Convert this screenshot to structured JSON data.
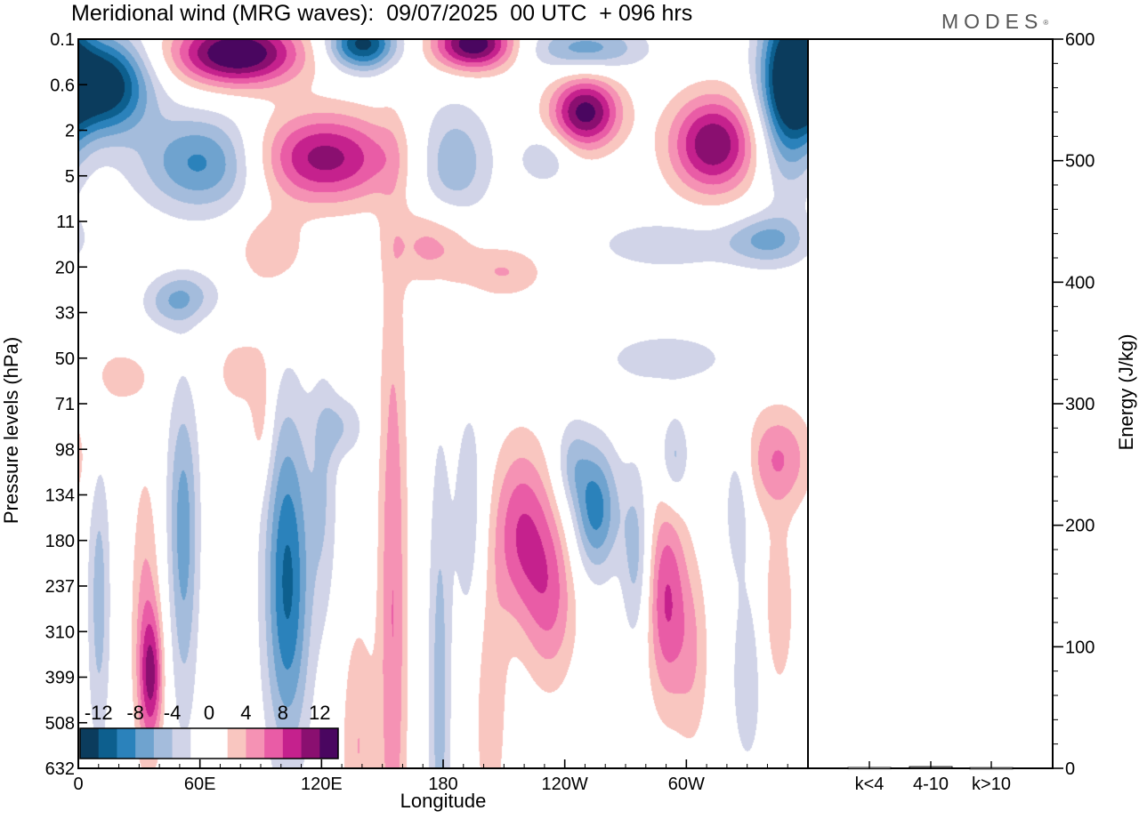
{
  "header": {
    "title": "Meridional wind (MRG waves):  09/07/2025  00 UTC  + 096 hrs",
    "brand": "MODES",
    "brand_mark": "®"
  },
  "chart_data": [
    {
      "type": "heatmap",
      "title": "Meridional wind (MRG waves):  09/07/2025  00 UTC  + 096 hrs",
      "xlabel": "Longitude",
      "ylabel": "Pressure levels (hPa)",
      "x_ticks": [
        "0",
        "60E",
        "120E",
        "180",
        "120W",
        "60W"
      ],
      "x_tick_values": [
        0,
        60,
        120,
        180,
        240,
        300
      ],
      "xlim": [
        0,
        360
      ],
      "y_ticks": [
        "0.1",
        "0.6",
        "2",
        "5",
        "11",
        "20",
        "33",
        "50",
        "71",
        "98",
        "134",
        "180",
        "237",
        "310",
        "399",
        "508",
        "632"
      ],
      "y_scale": "categorical pressure levels, top to bottom",
      "colorbar": {
        "labels": [
          "-12",
          "-8",
          "-4",
          "0",
          "4",
          "8",
          "12"
        ],
        "levels": [
          -12,
          -10,
          -8,
          -6,
          -4,
          -2,
          0,
          2,
          4,
          6,
          8,
          10,
          12
        ],
        "colors": [
          "#0b3c5d",
          "#0d5f8e",
          "#2b82bb",
          "#6fa3cf",
          "#a4bcdc",
          "#d1d4e8",
          "#ffffff",
          "#ffffff",
          "#f9c6c0",
          "#f592b4",
          "#e95ca6",
          "#c5218d",
          "#8a0f70",
          "#4a0660"
        ]
      },
      "blobs": [
        {
          "lon": 12,
          "lev": 1.0,
          "amp": -15,
          "sx": 16,
          "sy": 0.75
        },
        {
          "lon": 78,
          "lev": 0.3,
          "amp": 15,
          "sx": 22,
          "sy": 0.5
        },
        {
          "lon": 140,
          "lev": 0.1,
          "amp": -13,
          "sx": 12,
          "sy": 0.4
        },
        {
          "lon": 195,
          "lev": 0.1,
          "amp": 14,
          "sx": 14,
          "sy": 0.4
        },
        {
          "lon": 250,
          "lev": 0.2,
          "amp": -7,
          "sx": 20,
          "sy": 0.35
        },
        {
          "lon": 350,
          "lev": 0.8,
          "amp": -13,
          "sx": 10,
          "sy": 1.5
        },
        {
          "lon": 62,
          "lev": 2.7,
          "amp": -9,
          "sx": 22,
          "sy": 0.75
        },
        {
          "lon": 120,
          "lev": 2.6,
          "amp": 11,
          "sx": 26,
          "sy": 0.7
        },
        {
          "lon": 250,
          "lev": 1.6,
          "amp": 13,
          "sx": 12,
          "sy": 0.55
        },
        {
          "lon": 313,
          "lev": 2.3,
          "amp": 12,
          "sx": 15,
          "sy": 0.75
        },
        {
          "lon": 185,
          "lev": 2.7,
          "amp": -6,
          "sx": 13,
          "sy": 0.9
        },
        {
          "lon": 230,
          "lev": 2.6,
          "amp": -4,
          "sx": 9,
          "sy": 0.4
        },
        {
          "lon": 175,
          "lev": 4.5,
          "amp": 5,
          "sx": 14,
          "sy": 0.6
        },
        {
          "lon": 340,
          "lev": 4.4,
          "amp": -6,
          "sx": 14,
          "sy": 0.4
        },
        {
          "lon": 290,
          "lev": 4.5,
          "amp": -3.6,
          "sx": 26,
          "sy": 0.4
        },
        {
          "lon": 210,
          "lev": 5.1,
          "amp": 4,
          "sx": 14,
          "sy": 0.4
        },
        {
          "lon": 95,
          "lev": 4.6,
          "amp": 3.8,
          "sx": 12,
          "sy": 0.6
        },
        {
          "lon": 55,
          "lev": 5.6,
          "amp": -3.6,
          "sx": 12,
          "sy": 0.4
        },
        {
          "lon": 10,
          "lev": 12.3,
          "amp": -5,
          "sx": 4,
          "sy": 2.4
        },
        {
          "lon": 33,
          "lev": 12.7,
          "amp": 4.5,
          "sx": 5,
          "sy": 2.3
        },
        {
          "lon": 36,
          "lev": 14.0,
          "amp": 8,
          "sx": 4,
          "sy": 1.0
        },
        {
          "lon": 52,
          "lev": 12.0,
          "amp": -4.5,
          "sx": 5,
          "sy": 2.5
        },
        {
          "lon": 51,
          "lev": 10.0,
          "amp": -3.5,
          "sx": 6,
          "sy": 1.8
        },
        {
          "lon": 90,
          "lev": 8.3,
          "amp": 3.6,
          "sx": 4,
          "sy": 1.0
        },
        {
          "lon": 103,
          "lev": 11.9,
          "amp": -10.5,
          "sx": 8,
          "sy": 2.6
        },
        {
          "lon": 121,
          "lev": 10.0,
          "amp": -3.6,
          "sx": 5,
          "sy": 2.0
        },
        {
          "lon": 155,
          "lev": 12.5,
          "amp": 6,
          "sx": 5,
          "sy": 5.5
        },
        {
          "lon": 138,
          "lev": 15.5,
          "amp": 4,
          "sx": 6,
          "sy": 2.0
        },
        {
          "lon": 178,
          "lev": 14.5,
          "amp": -5,
          "sx": 4,
          "sy": 4.0
        },
        {
          "lon": 193,
          "lev": 10.5,
          "amp": -3.6,
          "sx": 6,
          "sy": 2.0
        },
        {
          "lon": 218,
          "lev": 10.8,
          "amp": 7.5,
          "sx": 10,
          "sy": 1.4
        },
        {
          "lon": 233,
          "lev": 12.2,
          "amp": 6,
          "sx": 9,
          "sy": 1.4
        },
        {
          "lon": 203,
          "lev": 14.5,
          "amp": 3.6,
          "sx": 6,
          "sy": 2.2
        },
        {
          "lon": 255,
          "lev": 10.3,
          "amp": -9,
          "sx": 8,
          "sy": 1.0
        },
        {
          "lon": 275,
          "lev": 11.3,
          "amp": -5,
          "sx": 5,
          "sy": 1.4
        },
        {
          "lon": 243,
          "lev": 9.3,
          "amp": -4,
          "sx": 6,
          "sy": 0.7
        },
        {
          "lon": 290,
          "lev": 12.3,
          "amp": 8,
          "sx": 7,
          "sy": 1.6
        },
        {
          "lon": 303,
          "lev": 13.5,
          "amp": 3.6,
          "sx": 6,
          "sy": 1.5
        },
        {
          "lon": 294,
          "lev": 9.2,
          "amp": -5,
          "sx": 5,
          "sy": 0.7
        },
        {
          "lon": 345,
          "lev": 9.2,
          "amp": 6,
          "sx": 12,
          "sy": 0.8
        },
        {
          "lon": 345,
          "lev": 12.5,
          "amp": 3.6,
          "sx": 6,
          "sy": 1.4
        },
        {
          "lon": 325,
          "lev": 10.0,
          "amp": -3.6,
          "sx": 5,
          "sy": 1.2
        },
        {
          "lon": 330,
          "lev": 14.0,
          "amp": -3.6,
          "sx": 6,
          "sy": 1.5
        },
        {
          "lon": 130,
          "lev": 8.5,
          "amp": -3.6,
          "sx": 8,
          "sy": 0.5
        },
        {
          "lon": 20,
          "lev": 7.4,
          "amp": 3.6,
          "sx": 10,
          "sy": 0.4
        },
        {
          "lon": 80,
          "lev": 7.3,
          "amp": 3.6,
          "sx": 8,
          "sy": 0.5
        },
        {
          "lon": 290,
          "lev": 7.0,
          "amp": -3.6,
          "sx": 22,
          "sy": 0.4
        },
        {
          "lon": 45,
          "lev": 5.8,
          "amp": -3.6,
          "sx": 10,
          "sy": 0.4
        }
      ]
    },
    {
      "type": "bar",
      "categories": [
        "k<4",
        "4-10",
        "k>10"
      ],
      "values": [
        0.3,
        1.0,
        0.2
      ],
      "xlabel": "",
      "ylabel": "Energy (J/kg)",
      "ylim": [
        0,
        600
      ],
      "y_ticks": [
        0,
        100,
        200,
        300,
        400,
        500,
        600
      ]
    }
  ]
}
